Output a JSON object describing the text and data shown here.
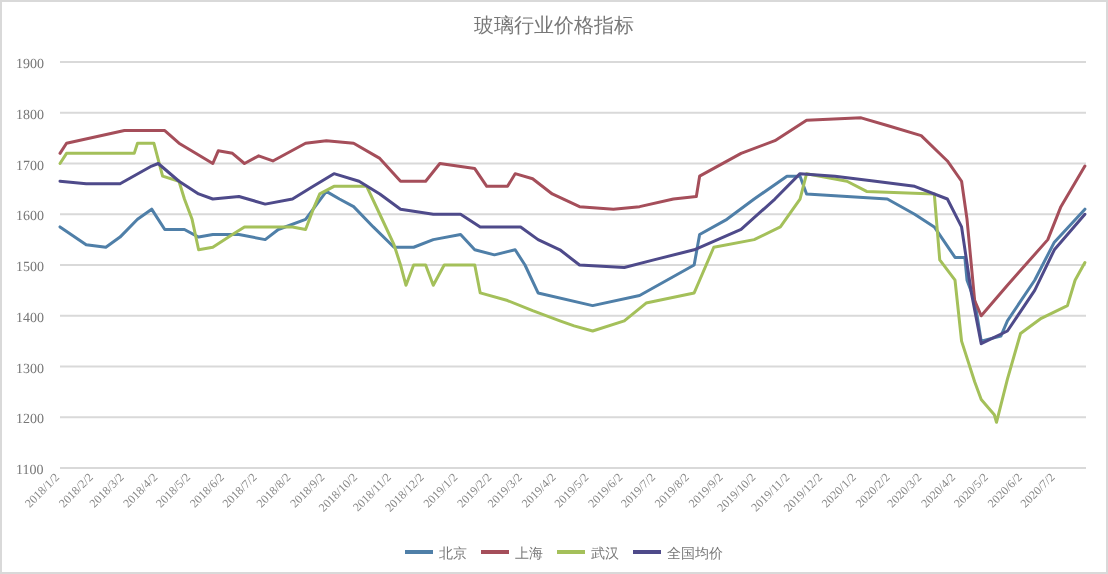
{
  "chart_data": {
    "type": "line",
    "title": "玻璃行业价格指标",
    "ylim": [
      1100,
      1900
    ],
    "yticks": [
      1100,
      1200,
      1300,
      1400,
      1500,
      1600,
      1700,
      1800,
      1900
    ],
    "xlim": [
      "2018-01-02",
      "2020-07-30"
    ],
    "xticks": [
      {
        "value": "2018-01-02",
        "label": "2018/1/2"
      },
      {
        "value": "2018-02-02",
        "label": "2018/2/2"
      },
      {
        "value": "2018-03-02",
        "label": "2018/3/2"
      },
      {
        "value": "2018-04-02",
        "label": "2018/4/2"
      },
      {
        "value": "2018-05-02",
        "label": "2018/5/2"
      },
      {
        "value": "2018-06-02",
        "label": "2018/6/2"
      },
      {
        "value": "2018-07-02",
        "label": "2018/7/2"
      },
      {
        "value": "2018-08-02",
        "label": "2018/8/2"
      },
      {
        "value": "2018-09-02",
        "label": "2018/9/2"
      },
      {
        "value": "2018-10-02",
        "label": "2018/10/2"
      },
      {
        "value": "2018-11-02",
        "label": "2018/11/2"
      },
      {
        "value": "2018-12-02",
        "label": "2018/12/2"
      },
      {
        "value": "2019-01-02",
        "label": "2019/1/2"
      },
      {
        "value": "2019-02-02",
        "label": "2019/2/2"
      },
      {
        "value": "2019-03-02",
        "label": "2019/3/2"
      },
      {
        "value": "2019-04-02",
        "label": "2019/4/2"
      },
      {
        "value": "2019-05-02",
        "label": "2019/5/2"
      },
      {
        "value": "2019-06-02",
        "label": "2019/6/2"
      },
      {
        "value": "2019-07-02",
        "label": "2019/7/2"
      },
      {
        "value": "2019-08-02",
        "label": "2019/8/2"
      },
      {
        "value": "2019-09-02",
        "label": "2019/9/2"
      },
      {
        "value": "2019-10-02",
        "label": "2019/10/2"
      },
      {
        "value": "2019-11-02",
        "label": "2019/11/2"
      },
      {
        "value": "2019-12-02",
        "label": "2019/12/2"
      },
      {
        "value": "2020-01-02",
        "label": "2020/1/2"
      },
      {
        "value": "2020-02-02",
        "label": "2020/2/2"
      },
      {
        "value": "2020-03-02",
        "label": "2020/3/2"
      },
      {
        "value": "2020-04-02",
        "label": "2020/4/2"
      },
      {
        "value": "2020-05-02",
        "label": "2020/5/2"
      },
      {
        "value": "2020-06-02",
        "label": "2020/6/2"
      },
      {
        "value": "2020-07-02",
        "label": "2020/7/2"
      }
    ],
    "grid": "y",
    "legend": "bottom",
    "line_style": "solid",
    "series": [
      {
        "name": "北京",
        "color": "#4f7fa8",
        "x": [
          "2018-01-02",
          "2018-01-26",
          "2018-02-13",
          "2018-02-26",
          "2018-03-14",
          "2018-03-27",
          "2018-04-02",
          "2018-04-08",
          "2018-04-26",
          "2018-05-09",
          "2018-05-22",
          "2018-06-15",
          "2018-07-09",
          "2018-07-21",
          "2018-08-15",
          "2018-09-03",
          "2018-09-15",
          "2018-09-28",
          "2018-10-16",
          "2018-11-04",
          "2018-11-22",
          "2018-12-10",
          "2019-01-04",
          "2019-01-17",
          "2019-02-04",
          "2019-02-23",
          "2019-03-04",
          "2019-03-16",
          "2019-05-05",
          "2019-06-17",
          "2019-08-06",
          "2019-08-11",
          "2019-09-05",
          "2019-09-30",
          "2019-10-30",
          "2019-11-11",
          "2019-11-17",
          "2019-12-24",
          "2020-01-30",
          "2020-02-24",
          "2020-03-13",
          "2020-04-01",
          "2020-04-10",
          "2020-04-12",
          "2020-04-19",
          "2020-04-25",
          "2020-05-13",
          "2020-05-19",
          "2020-06-13",
          "2020-07-01",
          "2020-07-29"
        ],
        "values": [
          1575,
          1540,
          1535,
          1555,
          1590,
          1610,
          1590,
          1570,
          1570,
          1555,
          1560,
          1560,
          1550,
          1570,
          1590,
          1645,
          1630,
          1615,
          1575,
          1535,
          1535,
          1550,
          1560,
          1530,
          1520,
          1530,
          1500,
          1445,
          1420,
          1440,
          1500,
          1560,
          1590,
          1630,
          1675,
          1675,
          1640,
          1635,
          1630,
          1600,
          1575,
          1515,
          1515,
          1470,
          1430,
          1350,
          1360,
          1390,
          1470,
          1545,
          1610
        ]
      },
      {
        "name": "上海",
        "color": "#a54e5a",
        "x": [
          "2018-01-02",
          "2018-01-08",
          "2018-03-02",
          "2018-04-08",
          "2018-04-21",
          "2018-05-22",
          "2018-05-27",
          "2018-06-09",
          "2018-06-20",
          "2018-07-03",
          "2018-07-16",
          "2018-08-15",
          "2018-09-03",
          "2018-09-28",
          "2018-10-22",
          "2018-11-10",
          "2018-12-03",
          "2018-12-16",
          "2019-01-17",
          "2019-01-28",
          "2019-02-16",
          "2019-02-23",
          "2019-03-11",
          "2019-03-29",
          "2019-04-23",
          "2019-05-24",
          "2019-06-17",
          "2019-07-18",
          "2019-08-08",
          "2019-08-11",
          "2019-09-18",
          "2019-10-19",
          "2019-11-17",
          "2020-01-06",
          "2020-01-30",
          "2020-03-01",
          "2020-03-25",
          "2020-04-07",
          "2020-04-12",
          "2020-04-19",
          "2020-04-25",
          "2020-05-19",
          "2020-06-25",
          "2020-07-07",
          "2020-07-29"
        ],
        "values": [
          1720,
          1740,
          1765,
          1765,
          1740,
          1700,
          1725,
          1720,
          1700,
          1715,
          1705,
          1740,
          1745,
          1740,
          1710,
          1665,
          1665,
          1700,
          1690,
          1655,
          1655,
          1680,
          1670,
          1640,
          1615,
          1610,
          1615,
          1630,
          1635,
          1675,
          1720,
          1745,
          1785,
          1790,
          1775,
          1755,
          1705,
          1665,
          1590,
          1430,
          1400,
          1460,
          1550,
          1615,
          1695
        ]
      },
      {
        "name": "武汉",
        "color": "#a4c05a",
        "x": [
          "2018-01-02",
          "2018-01-08",
          "2018-03-11",
          "2018-03-14",
          "2018-03-29",
          "2018-04-06",
          "2018-04-21",
          "2018-04-26",
          "2018-05-03",
          "2018-05-09",
          "2018-05-22",
          "2018-06-09",
          "2018-06-20",
          "2018-08-03",
          "2018-08-15",
          "2018-08-22",
          "2018-08-28",
          "2018-09-10",
          "2018-10-10",
          "2018-10-22",
          "2018-11-04",
          "2018-11-10",
          "2018-11-15",
          "2018-11-22",
          "2018-12-03",
          "2018-12-10",
          "2018-12-20",
          "2019-01-17",
          "2019-01-22",
          "2019-02-16",
          "2019-03-11",
          "2019-04-05",
          "2019-04-18",
          "2019-05-05",
          "2019-06-03",
          "2019-06-23",
          "2019-08-06",
          "2019-08-11",
          "2019-08-24",
          "2019-09-30",
          "2019-10-24",
          "2019-11-11",
          "2019-11-17",
          "2019-12-24",
          "2020-01-11",
          "2020-03-13",
          "2020-03-18",
          "2020-04-01",
          "2020-04-07",
          "2020-04-19",
          "2020-04-25",
          "2020-05-07",
          "2020-05-09",
          "2020-05-19",
          "2020-05-31",
          "2020-06-19",
          "2020-07-13",
          "2020-07-20",
          "2020-07-29"
        ],
        "values": [
          1700,
          1720,
          1720,
          1740,
          1740,
          1675,
          1665,
          1630,
          1590,
          1530,
          1535,
          1560,
          1575,
          1575,
          1570,
          1610,
          1640,
          1655,
          1655,
          1600,
          1540,
          1500,
          1460,
          1500,
          1500,
          1460,
          1500,
          1500,
          1445,
          1430,
          1410,
          1390,
          1380,
          1370,
          1390,
          1425,
          1445,
          1470,
          1535,
          1550,
          1575,
          1630,
          1680,
          1665,
          1645,
          1640,
          1510,
          1470,
          1350,
          1270,
          1235,
          1205,
          1190,
          1275,
          1365,
          1395,
          1420,
          1470,
          1505
        ]
      },
      {
        "name": "全国均价",
        "color": "#4e4a8a",
        "x": [
          "2018-01-02",
          "2018-01-26",
          "2018-02-26",
          "2018-03-27",
          "2018-04-02",
          "2018-04-21",
          "2018-05-09",
          "2018-05-22",
          "2018-06-15",
          "2018-07-09",
          "2018-08-03",
          "2018-08-22",
          "2018-09-10",
          "2018-10-03",
          "2018-10-22",
          "2018-11-10",
          "2018-12-10",
          "2019-01-04",
          "2019-01-22",
          "2019-02-28",
          "2019-03-16",
          "2019-04-05",
          "2019-04-23",
          "2019-06-03",
          "2019-06-30",
          "2019-08-06",
          "2019-09-18",
          "2019-10-19",
          "2019-11-11",
          "2019-12-13",
          "2020-01-19",
          "2020-02-24",
          "2020-03-25",
          "2020-04-07",
          "2020-04-16",
          "2020-04-25",
          "2020-05-19",
          "2020-06-13",
          "2020-07-01",
          "2020-07-29"
        ],
        "values": [
          1665,
          1660,
          1660,
          1695,
          1700,
          1665,
          1640,
          1630,
          1635,
          1620,
          1630,
          1655,
          1680,
          1665,
          1640,
          1610,
          1600,
          1600,
          1575,
          1575,
          1550,
          1530,
          1500,
          1495,
          1510,
          1530,
          1570,
          1630,
          1680,
          1675,
          1665,
          1655,
          1630,
          1575,
          1445,
          1345,
          1370,
          1450,
          1530,
          1600
        ]
      }
    ]
  }
}
